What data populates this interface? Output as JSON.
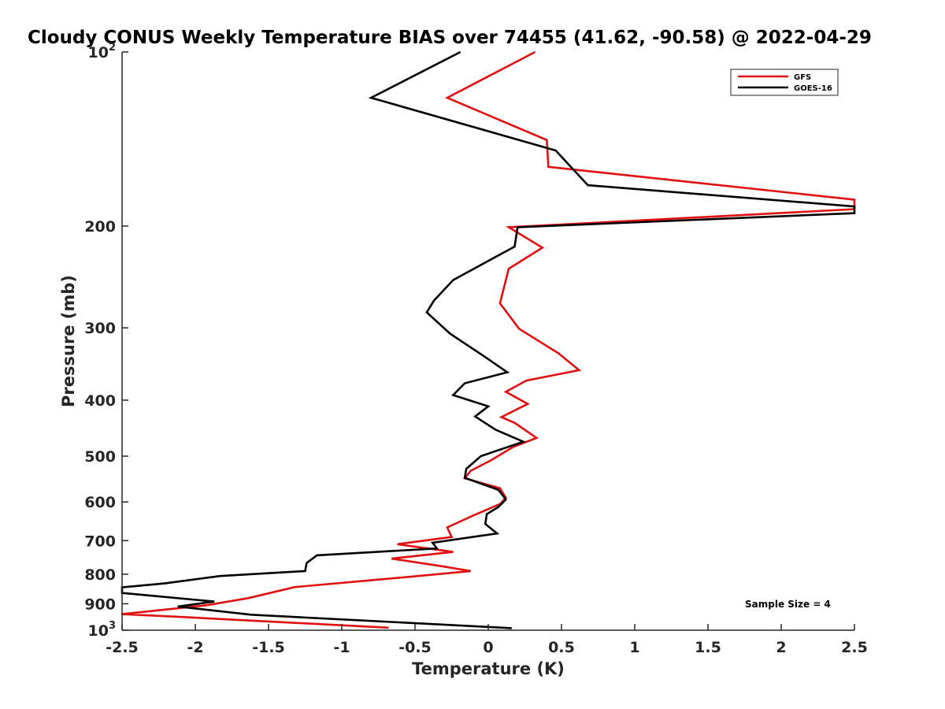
{
  "chart_data": {
    "type": "line",
    "title": "Cloudy CONUS Weekly Temperature BIAS over 74455 (41.62, -90.58) @ 2022-04-29",
    "xlabel": "Temperature (K)",
    "ylabel": "Pressure (mb)",
    "xlim": [
      -2.5,
      2.5
    ],
    "ylim": [
      100,
      1000
    ],
    "y_scale": "log",
    "y_reversed": true,
    "x_ticks": [
      -2.5,
      -2,
      -1.5,
      -1,
      -0.5,
      0,
      0.5,
      1,
      1.5,
      2,
      2.5
    ],
    "x_tick_labels": [
      "-2.5",
      "-2",
      "-1.5",
      "-1",
      "-0.5",
      "0",
      "0.5",
      "1",
      "1.5",
      "2",
      "2.5"
    ],
    "y_ticks": [
      {
        "value": 100,
        "base": "10",
        "exp": "2"
      },
      {
        "value": 200,
        "base": "200",
        "exp": ""
      },
      {
        "value": 300,
        "base": "300",
        "exp": ""
      },
      {
        "value": 400,
        "base": "400",
        "exp": ""
      },
      {
        "value": 500,
        "base": "500",
        "exp": ""
      },
      {
        "value": 600,
        "base": "600",
        "exp": ""
      },
      {
        "value": 700,
        "base": "700",
        "exp": ""
      },
      {
        "value": 800,
        "base": "800",
        "exp": ""
      },
      {
        "value": 900,
        "base": "900",
        "exp": ""
      },
      {
        "value": 1000,
        "base": "10",
        "exp": "3"
      }
    ],
    "grid": false,
    "legend_position": "top-right",
    "annotation": "Sample Size = 4",
    "series": [
      {
        "name": "GFS",
        "color": "#e01010",
        "points": [
          [
            0.32,
            100
          ],
          [
            -0.28,
            120
          ],
          [
            0.4,
            142
          ],
          [
            0.41,
            158
          ],
          [
            2.5,
            180
          ],
          [
            2.5,
            187
          ],
          [
            0.14,
            201
          ],
          [
            0.37,
            218
          ],
          [
            0.14,
            237
          ],
          [
            0.08,
            272
          ],
          [
            0.21,
            301
          ],
          [
            0.48,
            332
          ],
          [
            0.62,
            355
          ],
          [
            0.26,
            370
          ],
          [
            0.12,
            387
          ],
          [
            0.27,
            406
          ],
          [
            0.09,
            428
          ],
          [
            0.18,
            438
          ],
          [
            0.33,
            465
          ],
          [
            0.17,
            482
          ],
          [
            0.02,
            508
          ],
          [
            -0.12,
            530
          ],
          [
            -0.16,
            546
          ],
          [
            0.08,
            568
          ],
          [
            0.12,
            590
          ],
          [
            0.08,
            605
          ],
          [
            -0.1,
            633
          ],
          [
            -0.28,
            664
          ],
          [
            -0.25,
            690
          ],
          [
            -0.62,
            710
          ],
          [
            -0.24,
            732
          ],
          [
            -0.66,
            752
          ],
          [
            -0.32,
            775
          ],
          [
            -0.12,
            790
          ],
          [
            -0.62,
            812
          ],
          [
            -1.32,
            842
          ],
          [
            -1.64,
            880
          ],
          [
            -1.92,
            905
          ],
          [
            -2.5,
            938
          ],
          [
            -2.05,
            950
          ],
          [
            -0.68,
            990
          ]
        ]
      },
      {
        "name": "GOES-16",
        "color": "#000000",
        "points": [
          [
            -0.19,
            100
          ],
          [
            -0.8,
            120
          ],
          [
            0.46,
            148
          ],
          [
            0.68,
            170
          ],
          [
            2.5,
            185
          ],
          [
            2.5,
            190
          ],
          [
            0.2,
            201
          ],
          [
            0.18,
            217
          ],
          [
            -0.24,
            248
          ],
          [
            -0.37,
            269
          ],
          [
            -0.42,
            282
          ],
          [
            -0.26,
            307
          ],
          [
            -0.02,
            337
          ],
          [
            0.13,
            358
          ],
          [
            -0.16,
            374
          ],
          [
            -0.24,
            392
          ],
          [
            0.0,
            410
          ],
          [
            -0.09,
            427
          ],
          [
            0.05,
            450
          ],
          [
            0.24,
            472
          ],
          [
            -0.05,
            500
          ],
          [
            -0.15,
            526
          ],
          [
            -0.16,
            545
          ],
          [
            0.07,
            572
          ],
          [
            0.12,
            594
          ],
          [
            0.07,
            612
          ],
          [
            -0.01,
            630
          ],
          [
            -0.02,
            655
          ],
          [
            0.06,
            680
          ],
          [
            -0.38,
            706
          ],
          [
            -0.35,
            722
          ],
          [
            -1.17,
            742
          ],
          [
            -1.24,
            765
          ],
          [
            -1.25,
            790
          ],
          [
            -1.83,
            806
          ],
          [
            -2.21,
            830
          ],
          [
            -2.5,
            843
          ],
          [
            -2.5,
            862
          ],
          [
            -1.87,
            892
          ],
          [
            -2.12,
            910
          ],
          [
            -1.62,
            940
          ],
          [
            0.16,
            992
          ]
        ]
      }
    ]
  }
}
